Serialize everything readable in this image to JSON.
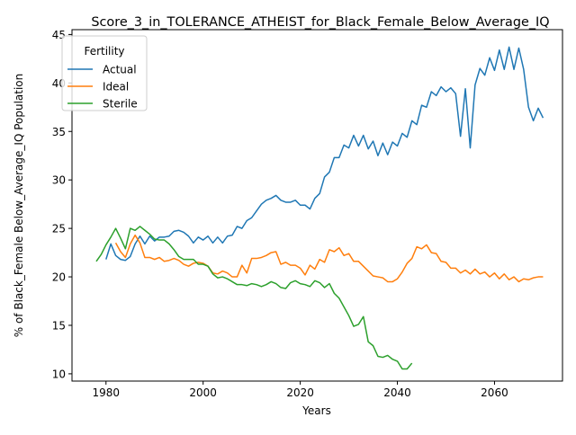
{
  "chart_data": {
    "type": "line",
    "title": "Score_3_in_TOLERANCE_ATHEIST_for_Black_Female_Below_Average_IQ",
    "xlabel": "Years",
    "ylabel": "% of Black_Female Below_Average_IQ Population",
    "xlim": [
      1973,
      2074
    ],
    "ylim": [
      9.25,
      45.5
    ],
    "xticks": [
      1980,
      2000,
      2020,
      2040,
      2060
    ],
    "yticks": [
      10,
      15,
      20,
      25,
      30,
      35,
      40,
      45
    ],
    "grid": false,
    "legend": {
      "title": "Fertility",
      "position": "upper-left"
    },
    "series": [
      {
        "name": "Actual",
        "color": "#1f77b4",
        "x": [
          1980,
          1981,
          1982,
          1983,
          1984,
          1985,
          1986,
          1987,
          1988,
          1989,
          1990,
          1991,
          1992,
          1993,
          1994,
          1995,
          1996,
          1997,
          1998,
          1999,
          2000,
          2001,
          2002,
          2003,
          2004,
          2005,
          2006,
          2007,
          2008,
          2009,
          2010,
          2011,
          2012,
          2013,
          2014,
          2015,
          2016,
          2017,
          2018,
          2019,
          2020,
          2021,
          2022,
          2023,
          2024,
          2025,
          2026,
          2027,
          2028,
          2029,
          2030,
          2031,
          2032,
          2033,
          2034,
          2035,
          2036,
          2037,
          2038,
          2039,
          2040,
          2041,
          2042,
          2043,
          2044,
          2045,
          2046,
          2047,
          2048,
          2049,
          2050,
          2051,
          2052,
          2053,
          2054,
          2055,
          2056,
          2057,
          2058,
          2059,
          2060,
          2061,
          2062,
          2063,
          2064,
          2065,
          2066,
          2067,
          2068,
          2069,
          2070
        ],
        "y": [
          21.8,
          23.4,
          22.2,
          21.8,
          21.7,
          22.1,
          23.4,
          24.2,
          23.4,
          24.2,
          23.7,
          24.1,
          24.1,
          24.2,
          24.7,
          24.8,
          24.6,
          24.2,
          23.5,
          24.1,
          23.8,
          24.2,
          23.5,
          24.1,
          23.5,
          24.2,
          24.3,
          25.2,
          25.0,
          25.8,
          26.1,
          26.8,
          27.5,
          27.9,
          28.1,
          28.4,
          27.9,
          27.7,
          27.7,
          27.9,
          27.4,
          27.4,
          27.0,
          28.1,
          28.6,
          30.3,
          30.8,
          32.3,
          32.3,
          33.6,
          33.3,
          34.6,
          33.5,
          34.6,
          33.2,
          34.0,
          32.5,
          33.8,
          32.6,
          33.9,
          33.5,
          34.8,
          34.4,
          36.1,
          35.7,
          37.7,
          37.5,
          39.1,
          38.7,
          39.6,
          39.1,
          39.5,
          38.9,
          34.5,
          39.4,
          33.3,
          39.8,
          41.5,
          40.8,
          42.6,
          41.3,
          43.4,
          41.4,
          43.7,
          41.4,
          43.6,
          41.4,
          37.5,
          36.1,
          37.4,
          36.4
        ]
      },
      {
        "name": "Ideal",
        "color": "#ff7f0e",
        "x": [
          1982,
          1983,
          1984,
          1985,
          1986,
          1987,
          1988,
          1989,
          1990,
          1991,
          1992,
          1993,
          1994,
          1995,
          1996,
          1997,
          1998,
          1999,
          2000,
          2001,
          2002,
          2003,
          2004,
          2005,
          2006,
          2007,
          2008,
          2009,
          2010,
          2011,
          2012,
          2013,
          2014,
          2015,
          2016,
          2017,
          2018,
          2019,
          2020,
          2021,
          2022,
          2023,
          2024,
          2025,
          2026,
          2027,
          2028,
          2029,
          2030,
          2031,
          2032,
          2033,
          2034,
          2035,
          2036,
          2037,
          2038,
          2039,
          2040,
          2041,
          2042,
          2043,
          2044,
          2045,
          2046,
          2047,
          2048,
          2049,
          2050,
          2051,
          2052,
          2053,
          2054,
          2055,
          2056,
          2057,
          2058,
          2059,
          2060,
          2061,
          2062,
          2063,
          2064,
          2065,
          2066,
          2067,
          2068,
          2069,
          2070
        ],
        "y": [
          23.5,
          22.6,
          22.0,
          23.4,
          24.3,
          23.5,
          22.0,
          22.0,
          21.8,
          22.0,
          21.6,
          21.7,
          21.9,
          21.7,
          21.3,
          21.1,
          21.4,
          21.5,
          21.4,
          21.1,
          20.4,
          20.3,
          20.6,
          20.4,
          20.0,
          20.0,
          21.2,
          20.4,
          21.9,
          21.9,
          22.0,
          22.2,
          22.5,
          22.6,
          21.3,
          21.5,
          21.2,
          21.2,
          20.9,
          20.2,
          21.2,
          20.8,
          21.8,
          21.5,
          22.8,
          22.6,
          23.0,
          22.2,
          22.4,
          21.6,
          21.6,
          21.1,
          20.6,
          20.1,
          20.0,
          19.9,
          19.5,
          19.5,
          19.8,
          20.5,
          21.4,
          21.9,
          23.1,
          22.9,
          23.3,
          22.5,
          22.4,
          21.6,
          21.5,
          20.9,
          20.9,
          20.4,
          20.7,
          20.3,
          20.8,
          20.3,
          20.5,
          20.0,
          20.4,
          19.8,
          20.3,
          19.7,
          20.0,
          19.5,
          19.8,
          19.7,
          19.9,
          20.0,
          20.0
        ]
      },
      {
        "name": "Sterile",
        "color": "#2ca02c",
        "x": [
          1978,
          1979,
          1980,
          1981,
          1982,
          1983,
          1984,
          1985,
          1986,
          1987,
          1988,
          1989,
          1990,
          1991,
          1992,
          1993,
          1994,
          1995,
          1996,
          1997,
          1998,
          1999,
          2000,
          2001,
          2002,
          2003,
          2004,
          2005,
          2006,
          2007,
          2008,
          2009,
          2010,
          2011,
          2012,
          2013,
          2014,
          2015,
          2016,
          2017,
          2018,
          2019,
          2020,
          2021,
          2022,
          2023,
          2024,
          2025,
          2026,
          2027,
          2028,
          2029,
          2030,
          2031,
          2032,
          2033,
          2034,
          2035,
          2036,
          2037,
          2038,
          2039,
          2040,
          2041,
          2042,
          2043
        ],
        "y": [
          21.6,
          22.3,
          23.3,
          24.1,
          25.0,
          24.0,
          22.9,
          25.0,
          24.8,
          25.2,
          24.8,
          24.4,
          23.9,
          23.8,
          23.8,
          23.4,
          22.8,
          22.1,
          21.8,
          21.8,
          21.8,
          21.3,
          21.3,
          21.1,
          20.3,
          19.9,
          20.0,
          19.8,
          19.5,
          19.2,
          19.2,
          19.1,
          19.3,
          19.2,
          19.0,
          19.2,
          19.5,
          19.3,
          18.9,
          18.8,
          19.4,
          19.6,
          19.3,
          19.2,
          19.0,
          19.6,
          19.4,
          18.9,
          19.3,
          18.3,
          17.8,
          16.9,
          16.0,
          14.9,
          15.1,
          15.9,
          13.3,
          12.9,
          11.8,
          11.7,
          11.9,
          11.5,
          11.3,
          10.5,
          10.5,
          11.1
        ]
      }
    ]
  }
}
